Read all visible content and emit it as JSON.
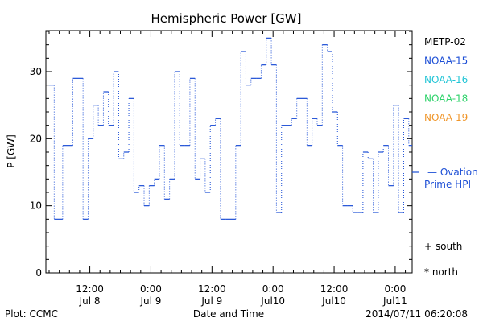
{
  "chart_data": {
    "type": "line",
    "title": "Hemispheric Power [GW]",
    "xlabel": "Date and Time",
    "ylabel": "P [GW]",
    "ylim": [
      0,
      36
    ],
    "xlim": [
      0,
      107
    ],
    "yticks": [
      0,
      10,
      20,
      30
    ],
    "xticks": [
      {
        "x": 12,
        "time": "12:00",
        "date": "Jul 8"
      },
      {
        "x": 30,
        "time": "0:00",
        "date": "Jul 9"
      },
      {
        "x": 48,
        "time": "12:00",
        "date": "Jul 9"
      },
      {
        "x": 66,
        "time": "0:00",
        "date": "Jul10"
      },
      {
        "x": 84,
        "time": "12:00",
        "date": "Jul10"
      },
      {
        "x": 102,
        "time": "0:00",
        "date": "Jul11"
      }
    ],
    "x_units": "hours since 2014-07-07 12:00",
    "series": [
      {
        "name": "NOAA-15",
        "color": "#1d4fd6",
        "style": "step-dotted",
        "x": [
          0,
          1.5,
          4,
          7,
          10,
          11.5,
          13,
          14.5,
          16,
          17.5,
          19,
          20.5,
          22,
          23.5,
          25,
          26.5,
          28,
          29.5,
          31,
          32.5,
          34,
          35.5,
          37,
          38.5,
          40,
          41.5,
          43,
          44.5,
          46,
          47.5,
          49,
          50.5,
          52,
          55,
          56.5,
          58,
          59.5,
          61,
          62.5,
          64,
          65.5,
          67,
          68.5,
          70,
          71.5,
          73,
          76,
          77.5,
          79,
          80.5,
          82,
          83.5,
          85,
          86.5,
          88,
          89.5,
          91,
          92.5,
          94,
          95.5,
          97,
          98.5,
          100,
          101.5,
          103,
          104.5,
          106
        ],
        "y": [
          28,
          8,
          19,
          29,
          8,
          20,
          25,
          22,
          27,
          22,
          30,
          17,
          18,
          26,
          12,
          13,
          10,
          13,
          14,
          19,
          11,
          14,
          30,
          19,
          19,
          29,
          14,
          17,
          12,
          22,
          23,
          8,
          8,
          19,
          33,
          28,
          29,
          29,
          31,
          35,
          31,
          9,
          22,
          22,
          23,
          26,
          19,
          23,
          22,
          34,
          33,
          24,
          19,
          10,
          10,
          9,
          9,
          18,
          17,
          9,
          18,
          19,
          13,
          25,
          9,
          23,
          19
        ]
      }
    ],
    "hpi_marker": {
      "y": 15,
      "label_line1": "— Ovation",
      "label_line2": "Prime HPI",
      "color": "#1d4fd6"
    }
  },
  "legend": {
    "satellites": [
      {
        "label": "METP-02",
        "color": "#000000"
      },
      {
        "label": "NOAA-15",
        "color": "#1d4fd6"
      },
      {
        "label": "NOAA-16",
        "color": "#22c5d6"
      },
      {
        "label": "NOAA-18",
        "color": "#2fd36b"
      },
      {
        "label": "NOAA-19",
        "color": "#f0962a"
      }
    ],
    "south_label": "+ south",
    "north_label": "* north"
  },
  "footer": {
    "plot_credit": "Plot: CCMC",
    "timestamp": "2014/07/11 06:20:08"
  }
}
